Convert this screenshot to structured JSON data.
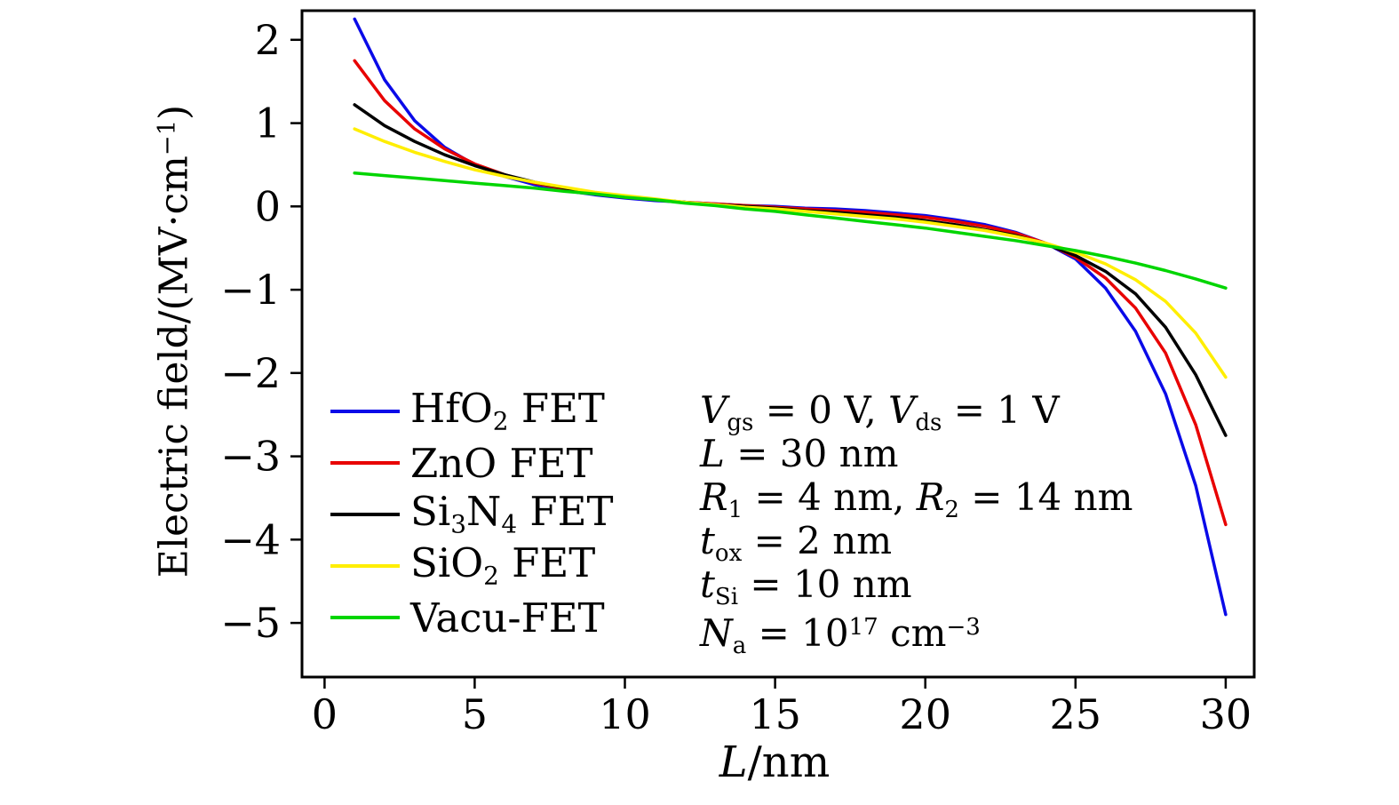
{
  "figure": {
    "background": "#ffffff",
    "frame_color": "#000000"
  },
  "chart_data": {
    "type": "line",
    "title": "",
    "xlabel": "L/nm",
    "ylabel": "Electric field/(MV·cm⁻¹)",
    "xlabel_segments": [
      {
        "t": "L",
        "i": true
      },
      {
        "t": "/nm"
      }
    ],
    "ylabel_segments": [
      {
        "t": "Electric field/(MV·cm"
      },
      {
        "t": "−1",
        "sup": true
      },
      {
        "t": ")"
      }
    ],
    "xlim": [
      -0.75,
      30.95
    ],
    "ylim": [
      -5.65,
      2.35
    ],
    "xticks": [
      0,
      5,
      10,
      15,
      20,
      25,
      30
    ],
    "yticks": [
      2,
      1,
      0,
      -1,
      -2,
      -3,
      -4,
      -5
    ],
    "grid": false,
    "legend_position": "inside lower-left",
    "x": [
      1,
      2,
      3,
      4,
      5,
      6,
      7,
      8,
      9,
      10,
      11,
      12,
      13,
      14,
      15,
      16,
      17,
      18,
      19,
      20,
      21,
      22,
      23,
      24,
      25,
      26,
      27,
      28,
      29,
      30
    ],
    "series": [
      {
        "name": "HfO2 FET",
        "color": "#0a0ae8",
        "label_segments": [
          {
            "t": "HfO"
          },
          {
            "t": "2",
            "sub": true
          },
          {
            "t": " FET"
          }
        ],
        "values": [
          2.25,
          1.52,
          1.03,
          0.71,
          0.5,
          0.36,
          0.26,
          0.19,
          0.14,
          0.1,
          0.07,
          0.05,
          0.03,
          0.01,
          0.0,
          -0.02,
          -0.03,
          -0.05,
          -0.08,
          -0.11,
          -0.16,
          -0.22,
          -0.31,
          -0.44,
          -0.63,
          -0.98,
          -1.5,
          -2.25,
          -3.35,
          -4.9
        ]
      },
      {
        "name": "ZnO FET",
        "color": "#e80000",
        "label_segments": [
          {
            "t": "ZnO FET"
          }
        ],
        "values": [
          1.75,
          1.27,
          0.93,
          0.69,
          0.51,
          0.38,
          0.28,
          0.21,
          0.15,
          0.11,
          0.08,
          0.05,
          0.03,
          0.01,
          -0.01,
          -0.03,
          -0.05,
          -0.07,
          -0.1,
          -0.13,
          -0.18,
          -0.24,
          -0.32,
          -0.44,
          -0.61,
          -0.86,
          -1.22,
          -1.76,
          -2.62,
          -3.82
        ]
      },
      {
        "name": "Si3N4 FET",
        "color": "#000000",
        "label_segments": [
          {
            "t": "Si"
          },
          {
            "t": "3",
            "sub": true
          },
          {
            "t": "N"
          },
          {
            "t": "4",
            "sub": true
          },
          {
            "t": " FET"
          }
        ],
        "values": [
          1.22,
          0.97,
          0.78,
          0.62,
          0.49,
          0.38,
          0.29,
          0.22,
          0.16,
          0.12,
          0.08,
          0.05,
          0.02,
          0.0,
          -0.02,
          -0.05,
          -0.07,
          -0.1,
          -0.13,
          -0.17,
          -0.22,
          -0.28,
          -0.35,
          -0.45,
          -0.59,
          -0.78,
          -1.05,
          -1.45,
          -2.02,
          -2.75
        ]
      },
      {
        "name": "SiO2 FET",
        "color": "#ffee00",
        "label_segments": [
          {
            "t": "SiO"
          },
          {
            "t": "2",
            "sub": true
          },
          {
            "t": " FET"
          }
        ],
        "values": [
          0.93,
          0.78,
          0.65,
          0.54,
          0.44,
          0.36,
          0.29,
          0.23,
          0.17,
          0.13,
          0.09,
          0.05,
          0.02,
          -0.01,
          -0.03,
          -0.06,
          -0.09,
          -0.12,
          -0.15,
          -0.19,
          -0.24,
          -0.29,
          -0.36,
          -0.44,
          -0.55,
          -0.69,
          -0.88,
          -1.14,
          -1.52,
          -2.05
        ]
      },
      {
        "name": "Vacu-FET",
        "color": "#00d500",
        "label_segments": [
          {
            "t": "Vacu-FET"
          }
        ],
        "values": [
          0.4,
          0.37,
          0.34,
          0.31,
          0.28,
          0.25,
          0.22,
          0.18,
          0.15,
          0.11,
          0.08,
          0.04,
          0.01,
          -0.03,
          -0.06,
          -0.1,
          -0.14,
          -0.18,
          -0.22,
          -0.26,
          -0.31,
          -0.36,
          -0.41,
          -0.47,
          -0.53,
          -0.6,
          -0.68,
          -0.77,
          -0.87,
          -0.98
        ]
      }
    ],
    "annotation_lines": [
      {
        "text": "Vgs = 0 V, Vds = 1 V",
        "segments": [
          {
            "t": "V",
            "i": true
          },
          {
            "t": "gs",
            "sub": true
          },
          {
            "t": " = 0 V, "
          },
          {
            "t": "V",
            "i": true
          },
          {
            "t": "ds",
            "sub": true
          },
          {
            "t": " = 1 V"
          }
        ]
      },
      {
        "text": "L = 30 nm",
        "segments": [
          {
            "t": "L",
            "i": true
          },
          {
            "t": " = 30 nm"
          }
        ]
      },
      {
        "text": "R1 = 4 nm, R2 = 14 nm",
        "segments": [
          {
            "t": "R",
            "i": true
          },
          {
            "t": "1",
            "sub": true
          },
          {
            "t": " = 4 nm, "
          },
          {
            "t": "R",
            "i": true
          },
          {
            "t": "2",
            "sub": true
          },
          {
            "t": " = 14 nm"
          }
        ]
      },
      {
        "text": "tox = 2 nm",
        "segments": [
          {
            "t": "t",
            "i": true
          },
          {
            "t": "ox",
            "sub": true
          },
          {
            "t": " = 2 nm"
          }
        ]
      },
      {
        "text": "tSi = 10 nm",
        "segments": [
          {
            "t": "t",
            "i": true
          },
          {
            "t": "Si",
            "sub": true
          },
          {
            "t": " = 10 nm"
          }
        ]
      },
      {
        "text": "Na = 10¹⁷ cm⁻³",
        "segments": [
          {
            "t": "N",
            "i": true
          },
          {
            "t": "a",
            "sub": true
          },
          {
            "t": " = 10"
          },
          {
            "t": "17",
            "sup": true
          },
          {
            "t": " cm"
          },
          {
            "t": "−3",
            "sup": true
          }
        ]
      }
    ]
  }
}
